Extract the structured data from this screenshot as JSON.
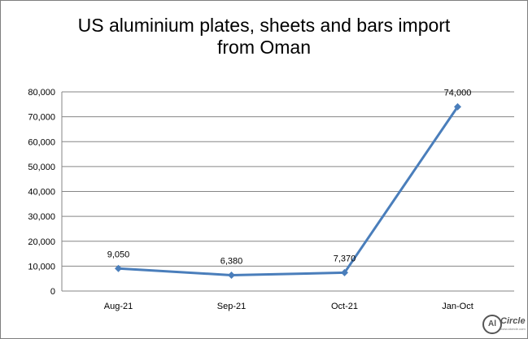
{
  "chart_data": {
    "type": "line",
    "title_line1": "US aluminium plates, sheets and bars import",
    "title_line2": "from Oman",
    "categories": [
      "Aug-21",
      "Sep-21",
      "Oct-21",
      "Jan-Oct"
    ],
    "series": [
      {
        "values": [
          9050,
          6380,
          7370,
          74000
        ],
        "color": "#4a7ebb"
      }
    ],
    "data_labels": [
      "9,050",
      "6,380",
      "7,370",
      "74,000"
    ],
    "y_ticks": [
      "0",
      "10,000",
      "20,000",
      "30,000",
      "40,000",
      "50,000",
      "60,000",
      "70,000",
      "80,000"
    ],
    "ylim": [
      0,
      80000
    ],
    "grid": true,
    "legend": "none"
  },
  "logo": {
    "ring_text": "Al",
    "word": "Circle",
    "sub": "www.alcircle.com"
  }
}
